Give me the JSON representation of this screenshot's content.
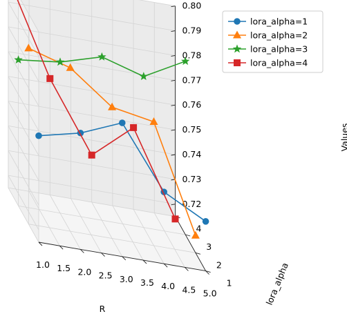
{
  "chart_data": {
    "type": "line",
    "projection": "3d",
    "xlabel": "R",
    "ylabel": "lora_alpha",
    "zlabel": "Values",
    "xlim": [
      1,
      5
    ],
    "ylim": [
      1,
      4
    ],
    "zlim": [
      0.715,
      0.8
    ],
    "xticks": [
      "1.0",
      "1.5",
      "2.0",
      "2.5",
      "3.0",
      "3.5",
      "4.0",
      "4.5",
      "5.0"
    ],
    "yticks": [
      "1",
      "2",
      "3",
      "4"
    ],
    "zticks": [
      "0.72",
      "0.73",
      "0.74",
      "0.75",
      "0.76",
      "0.77",
      "0.78",
      "0.79",
      "0.80"
    ],
    "grid": true,
    "legend_position": "top-right",
    "series": [
      {
        "name": "lora_alpha=1",
        "color": "#1f77b4",
        "marker": "circle",
        "y": 1,
        "x": [
          1,
          2,
          3,
          4,
          5
        ],
        "values": [
          0.758,
          0.762,
          0.769,
          0.744,
          0.735
        ]
      },
      {
        "name": "lora_alpha=2",
        "color": "#ff7f0e",
        "marker": "triangle",
        "y": 2,
        "x": [
          1,
          2,
          3,
          4,
          5
        ],
        "values": [
          0.786,
          0.781,
          0.768,
          0.765,
          0.722
        ]
      },
      {
        "name": "lora_alpha=3",
        "color": "#2ca02c",
        "marker": "star",
        "y": 3,
        "x": [
          1,
          2,
          3,
          4,
          5
        ],
        "values": [
          0.774,
          0.776,
          0.781,
          0.776,
          0.785
        ]
      },
      {
        "name": "lora_alpha=4",
        "color": "#d62728",
        "marker": "square",
        "y": 4,
        "x": [
          1,
          2,
          3,
          4,
          5
        ],
        "values": [
          0.8,
          0.762,
          0.734,
          0.748,
          0.714
        ]
      }
    ]
  }
}
